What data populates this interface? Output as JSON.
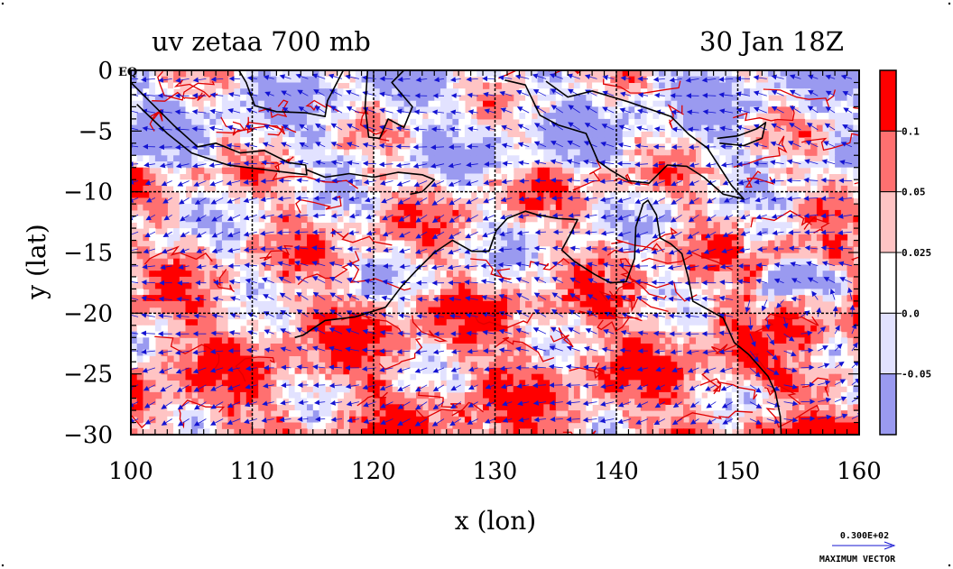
{
  "chart_data": {
    "type": "heatmap",
    "title": "uv zetaa 700 mb",
    "time_label": "30 Jan 18Z",
    "xlabel": "x (lon)",
    "ylabel": "y (lat)",
    "xlim": [
      100,
      160
    ],
    "ylim": [
      -30,
      0
    ],
    "x_ticks": [
      100,
      110,
      120,
      130,
      140,
      150,
      160
    ],
    "y_ticks": [
      0,
      -5,
      -10,
      -15,
      -20,
      -25,
      -30
    ],
    "x_tick_labels": [
      "100",
      "110",
      "120",
      "130",
      "140",
      "150",
      "160"
    ],
    "y_tick_labels": [
      "0",
      "−5",
      "−10",
      "−15",
      "−20",
      "−25",
      "−30"
    ],
    "y_top_suffix": "EQ",
    "grid_x": [
      110,
      120,
      130,
      140,
      150
    ],
    "grid_y": [
      -10,
      -20
    ],
    "grid": true,
    "colorbar": {
      "placement": "right",
      "bins": [
        {
          "color": "#ff0000"
        },
        {
          "color": "#ff7070"
        },
        {
          "color": "#ffc4c4"
        },
        {
          "color": "#ffffff"
        },
        {
          "color": "#e2e2ff"
        },
        {
          "color": "#9a9af0"
        }
      ],
      "boundary_labels": [
        "0.1",
        "0.05",
        "0.025",
        "0.0",
        "-0.05"
      ]
    },
    "vector_legend": {
      "value_label": "0.300E+02",
      "caption": "MAXIMUM VECTOR"
    },
    "vector_color": "#1414d2",
    "coast_color": "#000000"
  }
}
